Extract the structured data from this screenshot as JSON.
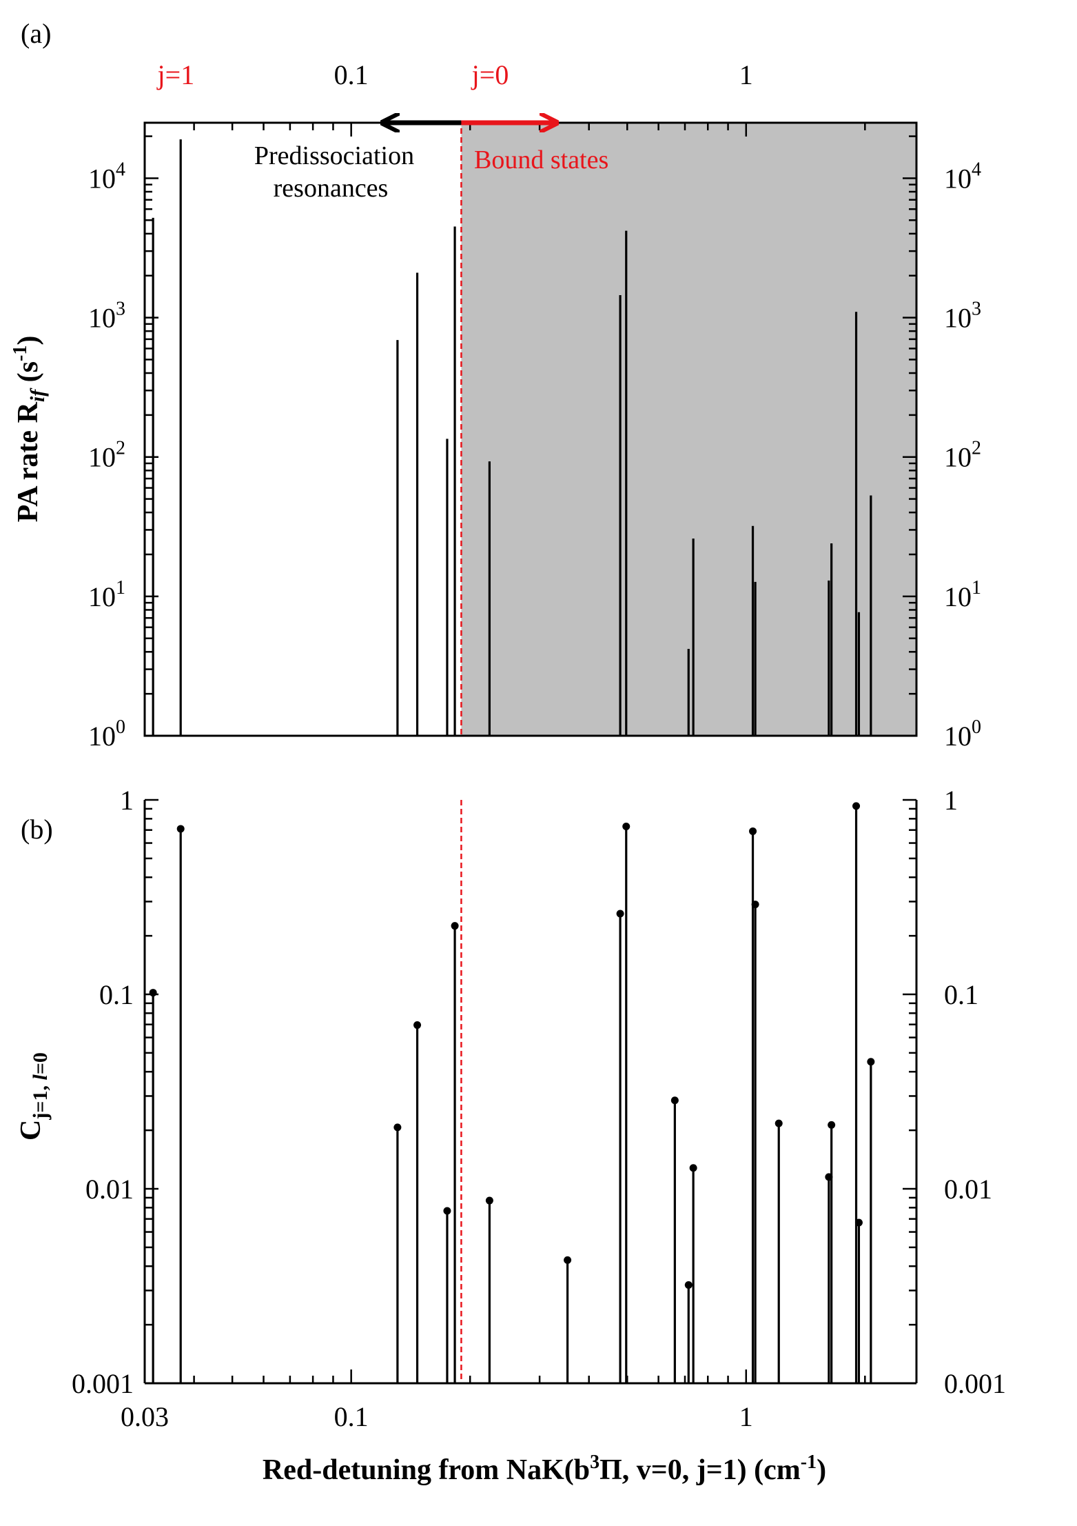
{
  "chart_data": [
    {
      "panel_label": "(a)",
      "type": "bar",
      "ylabel": "PA rate R",
      "ylabel_sub": "if",
      "ylabel_tail": " (s",
      "ylabel_sup": "-1",
      "ylabel_end": ")",
      "xscale": "log",
      "yscale": "log",
      "xlim": [
        0.03,
        2.7
      ],
      "ylim": [
        1,
        25000
      ],
      "y_ticks": [
        {
          "value": 1,
          "base": "10",
          "exp": "0"
        },
        {
          "value": 10,
          "base": "10",
          "exp": "1"
        },
        {
          "value": 100,
          "base": "10",
          "exp": "2"
        },
        {
          "value": 1000,
          "base": "10",
          "exp": "3"
        },
        {
          "value": 10000,
          "base": "10",
          "exp": "4"
        }
      ],
      "top_ticks": [
        {
          "value": 0.1,
          "label": "0.1"
        },
        {
          "value": 1,
          "label": "1"
        }
      ],
      "top_markers": [
        {
          "value": 0.036,
          "label": "j=1",
          "color": "#e8151b"
        },
        {
          "value": 0.225,
          "label": "j=0",
          "color": "#e8151b"
        }
      ],
      "shaded_region": {
        "x_start": 0.19,
        "x_end": 2.7,
        "color": "#c0c0c0"
      },
      "threshold_x": 0.19,
      "annotation_left": [
        "Predissociation",
        "resonances"
      ],
      "annotation_right": "Bound states",
      "annotation_right_color": "#e8151b",
      "lines": [
        {
          "x": 0.0315,
          "y": 5200
        },
        {
          "x": 0.037,
          "y": 19000
        },
        {
          "x": 0.131,
          "y": 690
        },
        {
          "x": 0.147,
          "y": 2100
        },
        {
          "x": 0.175,
          "y": 135
        },
        {
          "x": 0.183,
          "y": 4500
        },
        {
          "x": 0.224,
          "y": 93
        },
        {
          "x": 0.48,
          "y": 1450
        },
        {
          "x": 0.497,
          "y": 4200
        },
        {
          "x": 0.715,
          "y": 4.2
        },
        {
          "x": 0.735,
          "y": 26
        },
        {
          "x": 1.04,
          "y": 32
        },
        {
          "x": 1.055,
          "y": 12.7
        },
        {
          "x": 1.62,
          "y": 13
        },
        {
          "x": 1.645,
          "y": 24
        },
        {
          "x": 1.9,
          "y": 1100
        },
        {
          "x": 1.93,
          "y": 7.7
        },
        {
          "x": 2.07,
          "y": 53
        }
      ]
    },
    {
      "panel_label": "(b)",
      "type": "scatter",
      "marker_style": "stem",
      "ylabel": "C",
      "ylabel_sub": "j=1, ",
      "ylabel_sub_italic": "l",
      "ylabel_sub_tail": "=0",
      "xlabel": "Red-detuning from NaK(b",
      "xlabel_sup": "3",
      "xlabel_tail": "Π, v=0, j=1) (cm",
      "xlabel_sup2": "-1",
      "xlabel_end": ")",
      "xscale": "log",
      "yscale": "log",
      "xlim": [
        0.03,
        2.7
      ],
      "ylim": [
        0.001,
        1
      ],
      "x_ticks": [
        {
          "value": 0.03,
          "label": "0.03"
        },
        {
          "value": 0.1,
          "label": "0.1"
        },
        {
          "value": 1,
          "label": "1"
        }
      ],
      "y_ticks": [
        {
          "value": 0.001,
          "label": "0.001"
        },
        {
          "value": 0.01,
          "label": "0.01"
        },
        {
          "value": 0.1,
          "label": "0.1"
        },
        {
          "value": 1,
          "label": "1"
        }
      ],
      "threshold_x": 0.19,
      "points": [
        {
          "x": 0.0315,
          "y": 0.102
        },
        {
          "x": 0.037,
          "y": 0.71
        },
        {
          "x": 0.131,
          "y": 0.0207
        },
        {
          "x": 0.147,
          "y": 0.0695
        },
        {
          "x": 0.175,
          "y": 0.0077
        },
        {
          "x": 0.183,
          "y": 0.225
        },
        {
          "x": 0.224,
          "y": 0.0087
        },
        {
          "x": 0.353,
          "y": 0.0043
        },
        {
          "x": 0.48,
          "y": 0.26
        },
        {
          "x": 0.497,
          "y": 0.73
        },
        {
          "x": 0.66,
          "y": 0.0285
        },
        {
          "x": 0.715,
          "y": 0.0032
        },
        {
          "x": 0.735,
          "y": 0.0128
        },
        {
          "x": 1.04,
          "y": 0.69
        },
        {
          "x": 1.055,
          "y": 0.29
        },
        {
          "x": 1.21,
          "y": 0.0217
        },
        {
          "x": 1.62,
          "y": 0.0115
        },
        {
          "x": 1.645,
          "y": 0.0213
        },
        {
          "x": 1.9,
          "y": 0.93
        },
        {
          "x": 1.93,
          "y": 0.0067
        },
        {
          "x": 2.07,
          "y": 0.045
        }
      ]
    }
  ]
}
